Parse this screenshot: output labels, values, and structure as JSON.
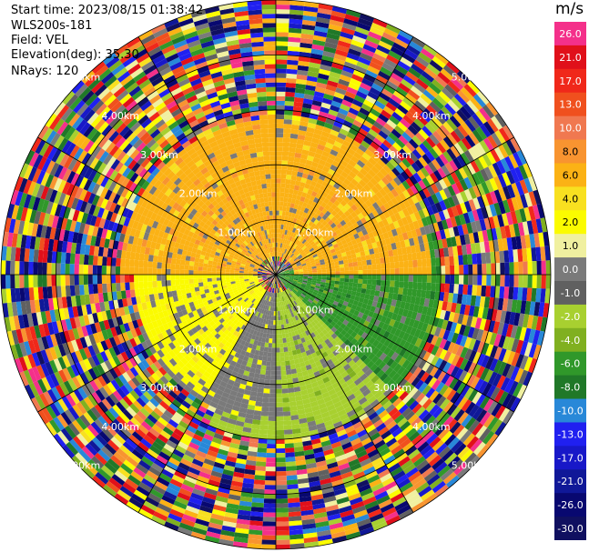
{
  "header": {
    "start_time": "Start time: 2023/08/15 01:38:42",
    "instrument": "WLS200s-181",
    "field": "Field: VEL",
    "elevation": "Elevation(deg): 35.30",
    "nrays": "NRays: 120"
  },
  "colorbar": {
    "unit": "m/s",
    "ticks": [
      "26.0",
      "21.0",
      "17.0",
      "13.0",
      "10.0",
      "8.0",
      "6.0",
      "4.0",
      "2.0",
      "1.0",
      "0.0",
      "-1.0",
      "-2.0",
      "-4.0",
      "-6.0",
      "-8.0",
      "-10.0",
      "-13.0",
      "-17.0",
      "-21.0",
      "-26.0",
      "-30.0"
    ],
    "colors": [
      "#f4308a",
      "#e0101a",
      "#f0281a",
      "#f0501e",
      "#f07850",
      "#f89430",
      "#fbb215",
      "#f8e020",
      "#fbfb00",
      "#f0f0a0",
      "#7a7a7a",
      "#606060",
      "#a8d030",
      "#80b020",
      "#30982a",
      "#207828",
      "#2888d8",
      "#2020f0",
      "#1818c8",
      "#101898",
      "#080870",
      "#101060"
    ]
  },
  "chart_data": {
    "type": "ppi",
    "field": "VEL",
    "nrays": 120,
    "range_rings_km": [
      1.0,
      2.0,
      3.0,
      4.0,
      5.0
    ],
    "range_labels": [
      "1.00km",
      "2.00km",
      "3.00km",
      "4.00km",
      "5.00km"
    ],
    "max_range_km": 5.0,
    "spokes_deg": [
      0,
      30,
      60,
      90,
      120,
      150
    ],
    "gates_per_ray": 60,
    "sectors": [
      {
        "name": "north",
        "az_range": [
          270,
          90
        ],
        "range_km": [
          0.3,
          2.8
        ],
        "velocity_m_s": 6.0
      },
      {
        "name": "west",
        "az_range": [
          210,
          330
        ],
        "range_km": [
          0.3,
          2.6
        ],
        "velocity_m_s": 2.0
      },
      {
        "name": "southwest",
        "az_range": [
          180,
          250
        ],
        "range_km": [
          0.3,
          2.7
        ],
        "velocity_m_s": 0.0
      },
      {
        "name": "south",
        "az_range": [
          135,
          205
        ],
        "range_km": [
          0.3,
          3.0
        ],
        "velocity_m_s": -2.0
      },
      {
        "name": "east",
        "az_range": [
          70,
          140
        ],
        "range_km": [
          0.0,
          3.2
        ],
        "velocity_m_s": -6.0
      }
    ],
    "noise_beyond_km": 3.0
  }
}
